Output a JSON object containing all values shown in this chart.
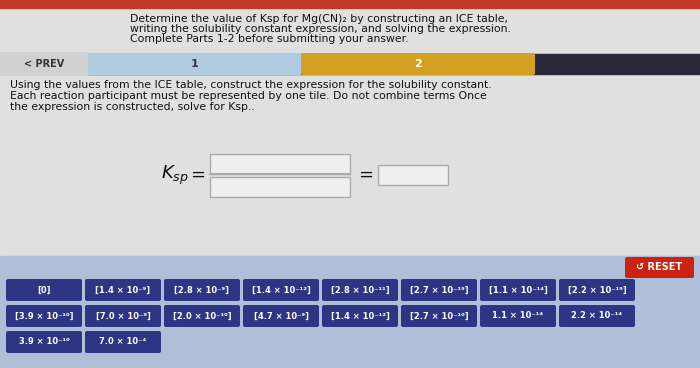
{
  "bg_top_red": "#c0392b",
  "bg_main": "#e0e0e0",
  "bg_bottom": "#b0bfd8",
  "title_text_line1": "Determine the value of Ksp for Mg(CN)₂ by constructing an ICE table,",
  "title_text_line2": "writing the solubility constant expression, and solving the expression.",
  "title_text_line3": "Complete Parts 1-2 before submitting your answer.",
  "instruction_line1": "Using the values from the ICE table, construct the expression for the solubility constant.",
  "instruction_line2": "Each reaction participant must be represented by one tile. Do not combine terms Once",
  "instruction_line3": "the expression is constructed, solve for Ksp..",
  "nav_prev_color": "#d0d0d0",
  "nav_1_color": "#b0cce0",
  "nav_2_color": "#d4a020",
  "nav_dark_color": "#282838",
  "tile_bg": "#2d3585",
  "tile_text_color": "#ffffff",
  "reset_bg": "#cc2211",
  "reset_text": "↺ RESET",
  "box_bg": "#f0efef",
  "box_edge": "#aaaaaa",
  "tiles_row1": [
    "[0]",
    "[1.4 × 10⁻⁹]",
    "[2.8 × 10⁻⁹]",
    "[1.4 × 10⁻¹²]",
    "[2.8 × 10⁻¹¹]",
    "[2.7 × 10⁻¹⁹]",
    "[1.1 × 10⁻¹⁴]",
    "[2.2 × 10⁻¹⁹]"
  ],
  "tiles_row2": [
    "[3.9 × 10⁻¹⁰]",
    "[7.0 × 10⁻⁹]",
    "[2.0 × 10⁻¹⁰]",
    "[4.7 × 10⁻⁹]",
    "[1.4 × 10⁻¹²]",
    "[2.7 × 10⁻¹⁰]",
    "1.1 × 10⁻¹⁴",
    "2.2 × 10⁻¹⁴"
  ],
  "tiles_row3": [
    "3.9 × 10⁻¹⁰",
    "7.0 × 10⁻⁴"
  ]
}
